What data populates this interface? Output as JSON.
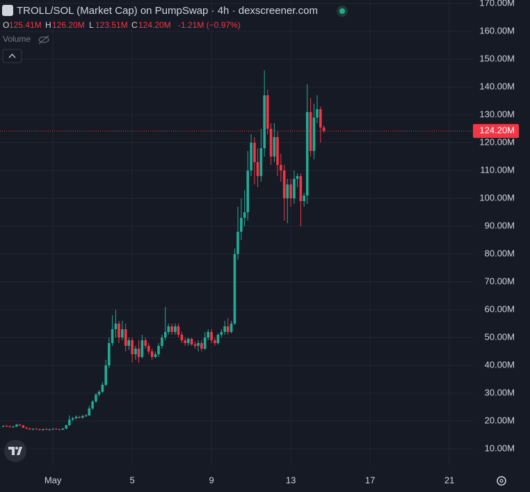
{
  "chart_data": {
    "type": "candlestick",
    "title": "TROLL/SOL (Market Cap) on PumpSwap · 4h · dexscreener.com",
    "legend": {
      "o_label": "O",
      "o": "125.41M",
      "h_label": "H",
      "h": "126.20M",
      "l_label": "L",
      "l": "123.51M",
      "c_label": "C",
      "c": "124.20M",
      "change": "-1.21M (−0.97%)"
    },
    "volume_label": "Volume",
    "up_color": "#22ab94",
    "down_color": "#f23645",
    "grid": true,
    "last_value": {
      "value": 124.2,
      "label": "124.20M"
    },
    "xlim": [
      -1.67,
      22.19
    ],
    "ylim": [
      4.25,
      171.25
    ],
    "xticks": [
      {
        "value": 1,
        "label": "May"
      },
      5,
      9,
      13,
      17,
      21
    ],
    "yticks": [
      {
        "value": 10,
        "label": "10.00M"
      },
      {
        "value": 20,
        "label": "20.00M"
      },
      {
        "value": 30,
        "label": "30.00M"
      },
      {
        "value": 40,
        "label": "40.00M"
      },
      {
        "value": 50,
        "label": "50.00M"
      },
      {
        "value": 60,
        "label": "60.00M"
      },
      {
        "value": 70,
        "label": "70.00M"
      },
      {
        "value": 80,
        "label": "80.00M"
      },
      {
        "value": 90,
        "label": "90.00M"
      },
      {
        "value": 100,
        "label": "100.00M"
      },
      {
        "value": 110,
        "label": "110.00M"
      },
      {
        "value": 120,
        "label": "120.00M"
      },
      {
        "value": 130,
        "label": "130.00M"
      },
      {
        "value": 140,
        "label": "140.00M"
      },
      {
        "value": 150,
        "label": "150.00M"
      },
      {
        "value": 160,
        "label": "160.00M"
      },
      {
        "value": 170,
        "label": "170.00M"
      }
    ],
    "x": [
      -1.5,
      -1.33,
      -1.17,
      -1,
      -0.83,
      -0.67,
      -0.5,
      -0.33,
      -0.17,
      0,
      0.17,
      0.33,
      0.5,
      0.67,
      0.83,
      1,
      1.17,
      1.33,
      1.5,
      1.67,
      1.83,
      2,
      2.17,
      2.33,
      2.5,
      2.67,
      2.83,
      3,
      3.17,
      3.33,
      3.5,
      3.67,
      3.83,
      4,
      4.17,
      4.33,
      4.5,
      4.67,
      4.83,
      5,
      5.17,
      5.33,
      5.5,
      5.67,
      5.83,
      6,
      6.17,
      6.33,
      6.5,
      6.67,
      6.83,
      7,
      7.17,
      7.33,
      7.5,
      7.67,
      7.83,
      8,
      8.17,
      8.33,
      8.5,
      8.67,
      8.83,
      9,
      9.17,
      9.33,
      9.5,
      9.67,
      9.83,
      10,
      10.17,
      10.33,
      10.5,
      10.67,
      10.83,
      11,
      11.17,
      11.33,
      11.5,
      11.67,
      11.83,
      12,
      12.17,
      12.33,
      12.5,
      12.67,
      12.83,
      13,
      13.17,
      13.33,
      13.5,
      13.67,
      13.83,
      14,
      14.17,
      14.33,
      14.5,
      14.67
    ],
    "ohlc": [
      [
        18,
        18.5,
        17.8,
        18.2
      ],
      [
        18.2,
        18.6,
        17.9,
        18.1
      ],
      [
        18.1,
        18.4,
        17.7,
        17.9
      ],
      [
        17.9,
        18.3,
        17.6,
        18
      ],
      [
        18,
        19,
        17.9,
        18.7
      ],
      [
        18.7,
        19,
        18.2,
        18.4
      ],
      [
        18.4,
        18.6,
        17.5,
        17.6
      ],
      [
        17.6,
        17.9,
        17.1,
        17.3
      ],
      [
        17.3,
        17.6,
        16.8,
        17
      ],
      [
        17,
        17.4,
        16.7,
        17.2
      ],
      [
        17.2,
        17.5,
        16.9,
        17
      ],
      [
        17,
        17.3,
        16.6,
        16.8
      ],
      [
        16.8,
        17.2,
        16.5,
        17.1
      ],
      [
        17.1,
        17.4,
        16.8,
        16.9
      ],
      [
        16.9,
        17.2,
        16.6,
        17
      ],
      [
        17,
        17.4,
        16.8,
        17.2
      ],
      [
        17.2,
        17.5,
        16.9,
        17
      ],
      [
        17,
        17.3,
        16.7,
        16.9
      ],
      [
        16.9,
        17.5,
        16.8,
        17.3
      ],
      [
        17.3,
        18.7,
        17.1,
        18.5
      ],
      [
        18.5,
        22,
        18.3,
        20.5
      ],
      [
        20.5,
        21.5,
        20,
        21
      ],
      [
        21,
        22,
        20.6,
        21.5
      ],
      [
        21.5,
        21.9,
        20.8,
        21.2
      ],
      [
        21.2,
        22.2,
        20.9,
        21.8
      ],
      [
        21.8,
        22.5,
        21.4,
        22
      ],
      [
        22,
        25.5,
        21.8,
        24.5
      ],
      [
        24.5,
        27.5,
        24,
        27
      ],
      [
        27,
        30,
        26.5,
        29.5
      ],
      [
        29.5,
        31,
        28.8,
        30.5
      ],
      [
        30.5,
        34,
        30,
        33
      ],
      [
        33,
        42,
        32.5,
        40
      ],
      [
        40,
        50,
        39,
        48
      ],
      [
        48,
        58,
        47,
        53
      ],
      [
        53,
        60,
        50,
        55
      ],
      [
        55,
        56,
        48,
        50
      ],
      [
        50,
        56,
        49,
        53
      ],
      [
        53,
        55,
        45,
        47
      ],
      [
        47,
        50,
        45.5,
        49
      ],
      [
        49,
        50,
        41,
        44
      ],
      [
        44,
        47,
        42,
        46
      ],
      [
        46,
        49,
        41,
        43
      ],
      [
        43,
        51,
        42.5,
        49
      ],
      [
        49,
        50,
        46,
        47
      ],
      [
        47,
        48,
        44,
        45
      ],
      [
        45,
        46,
        42,
        43
      ],
      [
        43,
        45,
        42.5,
        44
      ],
      [
        44,
        48,
        43,
        47
      ],
      [
        47,
        51,
        46,
        50
      ],
      [
        50,
        61,
        49,
        52
      ],
      [
        52,
        55,
        51,
        54
      ],
      [
        54,
        55,
        51,
        52
      ],
      [
        52,
        55,
        51,
        54
      ],
      [
        54,
        55,
        50,
        51
      ],
      [
        51,
        52,
        48,
        49
      ],
      [
        49,
        50,
        47,
        48
      ],
      [
        48,
        50,
        47,
        49.5
      ],
      [
        49.5,
        50,
        47,
        47.5
      ],
      [
        47.5,
        48.5,
        46,
        47
      ],
      [
        47,
        49,
        45,
        48
      ],
      [
        48,
        49,
        45,
        46
      ],
      [
        46,
        52,
        45.5,
        50
      ],
      [
        50,
        53,
        49,
        52
      ],
      [
        52,
        53,
        48,
        49
      ],
      [
        49,
        50,
        47,
        48
      ],
      [
        48,
        51.5,
        47.5,
        51
      ],
      [
        51,
        53,
        50,
        52
      ],
      [
        52,
        56,
        51,
        54
      ],
      [
        54,
        57,
        51,
        52
      ],
      [
        52,
        56,
        51.5,
        55
      ],
      [
        55,
        82,
        54.5,
        80
      ],
      [
        80,
        97,
        78,
        88
      ],
      [
        88,
        100,
        85,
        93
      ],
      [
        93,
        103,
        90,
        95
      ],
      [
        95,
        117,
        92,
        110
      ],
      [
        110,
        123,
        108,
        120
      ],
      [
        120,
        122,
        105,
        113
      ],
      [
        113,
        118,
        104,
        108
      ],
      [
        108,
        125,
        106,
        118
      ],
      [
        118,
        146,
        115,
        137
      ],
      [
        137,
        139,
        123,
        125
      ],
      [
        125,
        127,
        112,
        115
      ],
      [
        115,
        127,
        113,
        122
      ],
      [
        122,
        124,
        108,
        112
      ],
      [
        112,
        116,
        106,
        110
      ],
      [
        110,
        112,
        92,
        100
      ],
      [
        100,
        107,
        91,
        105
      ],
      [
        105,
        107,
        97,
        100
      ],
      [
        100,
        110,
        98,
        107
      ],
      [
        107,
        109,
        104,
        108
      ],
      [
        108,
        109,
        90,
        99
      ],
      [
        99,
        102,
        97,
        101
      ],
      [
        101,
        141,
        98,
        131
      ],
      [
        131,
        136,
        115,
        117
      ],
      [
        117,
        134,
        114,
        129
      ],
      [
        129,
        137,
        127,
        132
      ],
      [
        132,
        133,
        120,
        125.41
      ],
      [
        125.41,
        126.2,
        123.51,
        124.2
      ]
    ]
  }
}
